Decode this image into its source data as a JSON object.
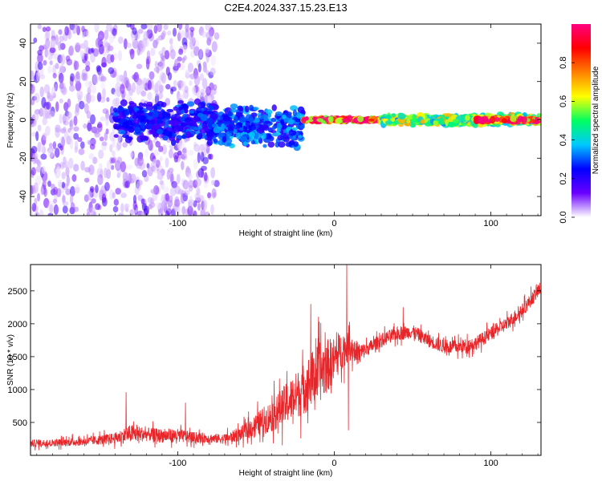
{
  "title": "C2E4.2024.337.15.23.E13",
  "colors": {
    "snr_line": "#e8262a",
    "frame": "#000000",
    "background": "#ffffff"
  },
  "chart_data": [
    {
      "type": "heatmap",
      "name": "spectrogram",
      "xlabel": "Height of straight line (km)",
      "ylabel": "Frequency (Hz)",
      "xlim": [
        -194,
        132
      ],
      "ylim": [
        -50,
        50
      ],
      "x_ticks": [
        -100,
        0,
        100
      ],
      "y_ticks": [
        -40,
        -20,
        0,
        20,
        40
      ],
      "grid": false,
      "colorbar": {
        "label": "Normalized spectral amplitude",
        "range": [
          0,
          1
        ],
        "ticks": [
          0.0,
          0.2,
          0.4,
          0.6,
          0.8
        ],
        "colormap": [
          "#ffffff",
          "#6a00ff",
          "#0000ff",
          "#00c8ff",
          "#00ff60",
          "#ffff00",
          "#ff8000",
          "#ff0000",
          "#ff0080"
        ]
      },
      "features": [
        {
          "x_range": [
            -194,
            -75
          ],
          "freq_range": [
            -50,
            50
          ],
          "amplitude": 0.1,
          "description_level": "scattered low energy"
        },
        {
          "x_range": [
            -140,
            -75
          ],
          "freq_range": [
            -12,
            10
          ],
          "amplitude": 0.25
        },
        {
          "x_range": [
            -80,
            -20
          ],
          "freq_range": [
            -15,
            8
          ],
          "amplitude": 0.3
        },
        {
          "x_range": [
            -20,
            30
          ],
          "freq_range": [
            -1,
            1
          ],
          "amplitude": 0.9
        },
        {
          "x_range": [
            30,
            132
          ],
          "freq_range": [
            -3,
            3
          ],
          "amplitude": 0.55
        },
        {
          "x_range": [
            90,
            132
          ],
          "freq_range": [
            -1,
            1
          ],
          "amplitude": 0.9
        }
      ]
    },
    {
      "type": "line",
      "name": "snr",
      "xlabel": "Height of straight line (km)",
      "ylabel": "SNR (10 * v/v)",
      "xlim": [
        -194,
        132
      ],
      "ylim": [
        0,
        2900
      ],
      "x_ticks": [
        -100,
        0,
        100
      ],
      "y_ticks": [
        500,
        1000,
        1500,
        2000,
        2500
      ],
      "grid": false,
      "x": [
        -194,
        -180,
        -160,
        -140,
        -130,
        -120,
        -110,
        -100,
        -90,
        -80,
        -70,
        -60,
        -50,
        -40,
        -30,
        -20,
        -15,
        -10,
        -5,
        0,
        5,
        10,
        15,
        20,
        30,
        40,
        50,
        60,
        70,
        80,
        90,
        100,
        110,
        120,
        132
      ],
      "values": [
        180,
        190,
        210,
        260,
        330,
        320,
        300,
        300,
        270,
        260,
        250,
        320,
        460,
        600,
        800,
        1000,
        1150,
        1250,
        1350,
        1450,
        1600,
        1650,
        1550,
        1600,
        1750,
        1850,
        1880,
        1750,
        1650,
        1650,
        1700,
        1850,
        2000,
        2200,
        2550
      ],
      "noise_amplitude": [
        80,
        80,
        90,
        120,
        200,
        150,
        150,
        150,
        120,
        100,
        110,
        150,
        250,
        350,
        450,
        550,
        600,
        650,
        600,
        500,
        400,
        300,
        250,
        150,
        150,
        150,
        150,
        150,
        150,
        150,
        150,
        150,
        150,
        150,
        150
      ],
      "spikes": [
        {
          "x": -133,
          "y": 960
        },
        {
          "x": -95,
          "y": 800
        },
        {
          "x": -15,
          "y": 2300
        },
        {
          "x": 8,
          "y": 2900
        },
        {
          "x": 9,
          "y": 380
        },
        {
          "x": 44,
          "y": 2250
        }
      ]
    }
  ]
}
